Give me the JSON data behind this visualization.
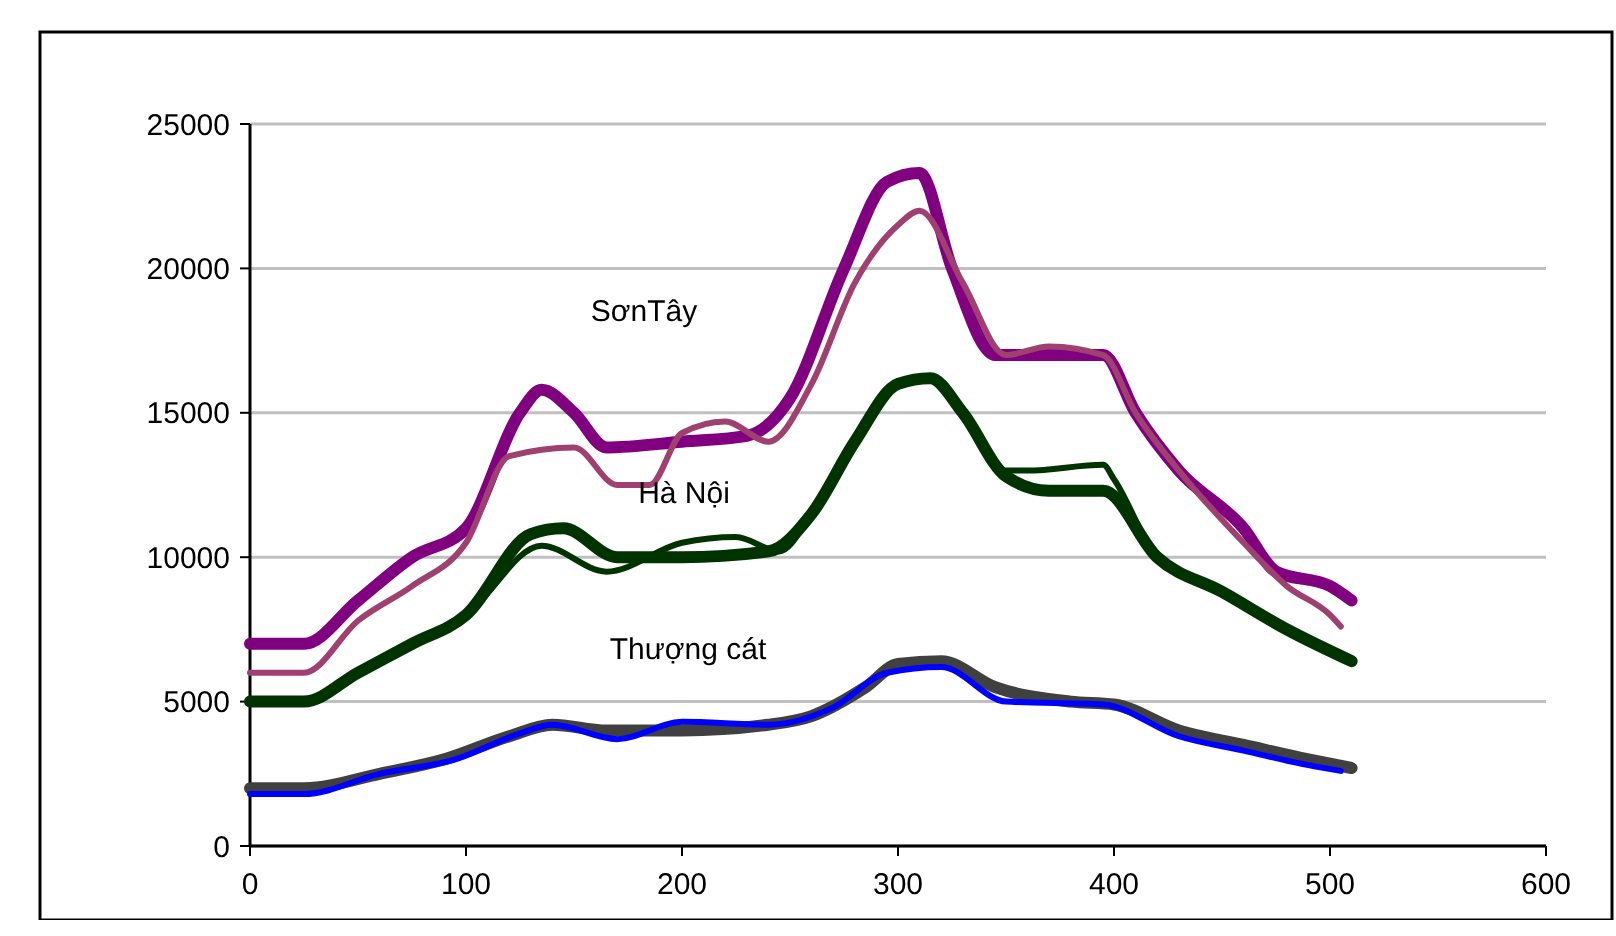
{
  "chart_data": {
    "type": "line",
    "xlim": [
      0,
      600
    ],
    "xticks": [
      0,
      100,
      200,
      300,
      400,
      500,
      600
    ],
    "ylim": [
      0,
      25000
    ],
    "yticks": [
      0,
      5000,
      10000,
      15000,
      20000,
      25000
    ],
    "grid": "y",
    "line_style": "solid",
    "annotations": [
      "SơnTây",
      "Hà Nội",
      "Thượng cát"
    ],
    "series": [
      {
        "color": "#800080",
        "x": [
          0,
          25,
          50,
          75,
          100,
          125,
          135,
          150,
          165,
          200,
          230,
          250,
          275,
          295,
          310,
          325,
          345,
          370,
          395,
          410,
          430,
          460,
          475,
          500,
          510
        ],
        "values": [
          7000,
          7000,
          8500,
          10000,
          11000,
          15000,
          15800,
          15000,
          13800,
          14000,
          14200,
          15500,
          20000,
          23000,
          23300,
          20000,
          17000,
          17000,
          17000,
          15000,
          13000,
          11000,
          9500,
          9000,
          8500
        ]
      },
      {
        "color": "#a04070",
        "x": [
          0,
          25,
          50,
          75,
          100,
          120,
          150,
          170,
          185,
          200,
          220,
          240,
          260,
          280,
          300,
          310,
          330,
          350,
          370,
          395,
          410,
          430,
          460,
          480,
          500,
          505
        ],
        "values": [
          6000,
          6000,
          7800,
          9000,
          10500,
          13500,
          13800,
          12500,
          12500,
          14300,
          14700,
          14000,
          16000,
          19500,
          21500,
          22000,
          19500,
          17000,
          17300,
          17000,
          15000,
          13000,
          10500,
          9000,
          8000,
          7600
        ]
      },
      {
        "color": "#003300",
        "x": [
          0,
          25,
          50,
          75,
          100,
          130,
          145,
          170,
          200,
          240,
          260,
          280,
          300,
          315,
          330,
          350,
          370,
          395,
          420,
          450,
          480,
          510
        ],
        "values": [
          5000,
          5000,
          6000,
          7000,
          8000,
          10800,
          11000,
          10000,
          10000,
          10200,
          11500,
          14000,
          16000,
          16200,
          15000,
          12800,
          12300,
          12300,
          10000,
          8800,
          7500,
          6400
        ]
      },
      {
        "color": "#003300",
        "x": [
          0,
          25,
          50,
          75,
          100,
          135,
          165,
          200,
          225,
          245,
          260,
          280,
          300,
          315,
          330,
          350,
          360,
          395,
          400,
          420,
          450,
          480,
          510
        ],
        "values": [
          5000,
          5000,
          6000,
          7000,
          8000,
          10400,
          9500,
          10500,
          10700,
          10200,
          11500,
          14000,
          16000,
          16200,
          15000,
          13000,
          13000,
          13200,
          12700,
          10000,
          8800,
          7500,
          6400
        ]
      },
      {
        "color": "#404040",
        "x": [
          0,
          25,
          60,
          90,
          120,
          140,
          165,
          200,
          240,
          260,
          285,
          300,
          320,
          345,
          380,
          400,
          430,
          460,
          490,
          510
        ],
        "values": [
          2000,
          2000,
          2500,
          3000,
          3800,
          4200,
          4000,
          4000,
          4200,
          4500,
          5500,
          6300,
          6400,
          5500,
          5000,
          4900,
          4000,
          3500,
          3000,
          2700
        ]
      },
      {
        "color": "#0000ff",
        "x": [
          0,
          25,
          60,
          95,
          125,
          140,
          170,
          200,
          240,
          270,
          295,
          320,
          350,
          395,
          430,
          460,
          490,
          505
        ],
        "values": [
          1800,
          1800,
          2500,
          3000,
          3900,
          4200,
          3700,
          4300,
          4200,
          4800,
          6000,
          6200,
          5000,
          4900,
          3800,
          3300,
          2800,
          2600
        ]
      }
    ]
  }
}
